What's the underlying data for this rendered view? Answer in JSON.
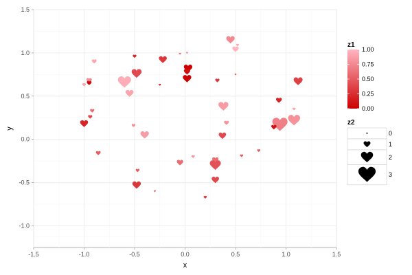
{
  "chart_data": {
    "type": "scatter",
    "marker": "heart",
    "title": "",
    "xlabel": "x",
    "ylabel": "y",
    "xlim": [
      -1.5,
      1.5
    ],
    "ylim": [
      -1.25,
      1.5
    ],
    "x_ticks": [
      -1.5,
      -1.0,
      -0.5,
      0.0,
      0.5,
      1.0,
      1.5
    ],
    "x_tick_labels": [
      "-1.5",
      "-1.0",
      "-0.5",
      "0.0",
      "0.5",
      "1.0",
      "1.5"
    ],
    "y_ticks": [
      -1.0,
      -0.5,
      0.0,
      0.5,
      1.0,
      1.5
    ],
    "y_tick_labels": [
      "-1.0",
      "-0.5",
      "0.0",
      "0.5",
      "1.0",
      "1.5"
    ],
    "grid": true,
    "background": "#ffffff",
    "grid_color": "#ebebeb",
    "legend_position": "right",
    "color_legend": {
      "title": "z1",
      "breaks": [
        1.0,
        0.75,
        0.5,
        0.25,
        0.0
      ],
      "labels": [
        "1.00",
        "0.75",
        "0.50",
        "0.25",
        "0.00"
      ],
      "low_color": "#cc0000",
      "high_color": "#ffb6c1"
    },
    "size_legend": {
      "title": "z2",
      "breaks": [
        0,
        1,
        2,
        3
      ],
      "labels": [
        "0",
        "1",
        "2",
        "3"
      ]
    },
    "points": [
      {
        "x": 0.45,
        "y": 1.15,
        "z1": 0.75,
        "z2": 1.3
      },
      {
        "x": 0.52,
        "y": 1.09,
        "z1": 0.9,
        "z2": 0.2
      },
      {
        "x": 0.5,
        "y": 1.04,
        "z1": 1.0,
        "z2": 0.9
      },
      {
        "x": 0.02,
        "y": 1.0,
        "z1": 0.8,
        "z2": 0.1
      },
      {
        "x": -0.5,
        "y": 0.96,
        "z1": 0.2,
        "z2": 0.4
      },
      {
        "x": -0.22,
        "y": 0.92,
        "z1": 0.3,
        "z2": 1.2
      },
      {
        "x": -0.9,
        "y": 0.9,
        "z1": 0.9,
        "z2": 0.6
      },
      {
        "x": 0.03,
        "y": 0.82,
        "z1": 0.0,
        "z2": 1.3
      },
      {
        "x": 0.02,
        "y": 0.78,
        "z1": 0.1,
        "z2": 0.9
      },
      {
        "x": -0.48,
        "y": 0.76,
        "z1": 0.4,
        "z2": 1.6
      },
      {
        "x": 0.02,
        "y": 0.7,
        "z1": 0.0,
        "z2": 1.3
      },
      {
        "x": 0.32,
        "y": 0.68,
        "z1": 0.3,
        "z2": 0.5
      },
      {
        "x": 1.12,
        "y": 0.67,
        "z1": 0.35,
        "z2": 1.4
      },
      {
        "x": -0.95,
        "y": 0.68,
        "z1": 0.75,
        "z2": 0.7
      },
      {
        "x": -0.95,
        "y": 0.65,
        "z1": 0.05,
        "z2": 0.6
      },
      {
        "x": -1.0,
        "y": 0.63,
        "z1": 0.9,
        "z2": 0.4
      },
      {
        "x": -0.6,
        "y": 0.66,
        "z1": 0.95,
        "z2": 2.2
      },
      {
        "x": -0.55,
        "y": 0.53,
        "z1": 0.9,
        "z2": 1.2
      },
      {
        "x": 0.93,
        "y": 0.45,
        "z1": 0.2,
        "z2": 0.8
      },
      {
        "x": 1.08,
        "y": 0.35,
        "z1": 0.9,
        "z2": 0.3
      },
      {
        "x": -0.92,
        "y": 0.33,
        "z1": 0.6,
        "z2": 0.5
      },
      {
        "x": 0.38,
        "y": 0.38,
        "z1": 0.85,
        "z2": 1.6
      },
      {
        "x": -0.94,
        "y": 0.26,
        "z1": 0.4,
        "z2": 0.5
      },
      {
        "x": 0.94,
        "y": 0.17,
        "z1": 0.7,
        "z2": 2.6
      },
      {
        "x": 1.08,
        "y": 0.22,
        "z1": 0.8,
        "z2": 2.0
      },
      {
        "x": 0.88,
        "y": 0.14,
        "z1": 0.1,
        "z2": 0.7
      },
      {
        "x": -1.0,
        "y": 0.18,
        "z1": 0.2,
        "z2": 1.2
      },
      {
        "x": -0.51,
        "y": 0.16,
        "z1": 0.8,
        "z2": 0.4
      },
      {
        "x": 0.41,
        "y": 0.19,
        "z1": 0.8,
        "z2": 0.6
      },
      {
        "x": -0.4,
        "y": 0.05,
        "z1": 0.85,
        "z2": 1.3
      },
      {
        "x": 0.37,
        "y": 0.04,
        "z1": 0.4,
        "z2": 1.1
      },
      {
        "x": -0.86,
        "y": -0.16,
        "z1": 0.5,
        "z2": 0.6
      },
      {
        "x": 0.56,
        "y": -0.19,
        "z1": 0.5,
        "z2": 0.3
      },
      {
        "x": 0.73,
        "y": -0.13,
        "z1": 0.5,
        "z2": 0.3
      },
      {
        "x": 0.3,
        "y": -0.24,
        "z1": 0.6,
        "z2": 0.9
      },
      {
        "x": 0.3,
        "y": -0.3,
        "z1": 0.45,
        "z2": 1.8
      },
      {
        "x": -0.05,
        "y": -0.27,
        "z1": 0.6,
        "z2": 0.9
      },
      {
        "x": 0.08,
        "y": -0.2,
        "z1": 0.8,
        "z2": 0.3
      },
      {
        "x": 0.3,
        "y": -0.47,
        "z1": 0.4,
        "z2": 1.1
      },
      {
        "x": -0.47,
        "y": -0.36,
        "z1": 0.5,
        "z2": 0.4
      },
      {
        "x": -0.48,
        "y": -0.53,
        "z1": 0.3,
        "z2": 1.3
      },
      {
        "x": -0.3,
        "y": -0.6,
        "z1": 0.6,
        "z2": 0.1
      },
      {
        "x": 0.2,
        "y": -0.67,
        "z1": 0.3,
        "z2": 0.3
      },
      {
        "x": -0.25,
        "y": 0.63,
        "z1": 0.1,
        "z2": 0.1
      },
      {
        "x": -0.05,
        "y": 0.99,
        "z1": 0.6,
        "z2": 0.1
      },
      {
        "x": 0.5,
        "y": 0.75,
        "z1": 0.5,
        "z2": 0.05
      }
    ]
  }
}
